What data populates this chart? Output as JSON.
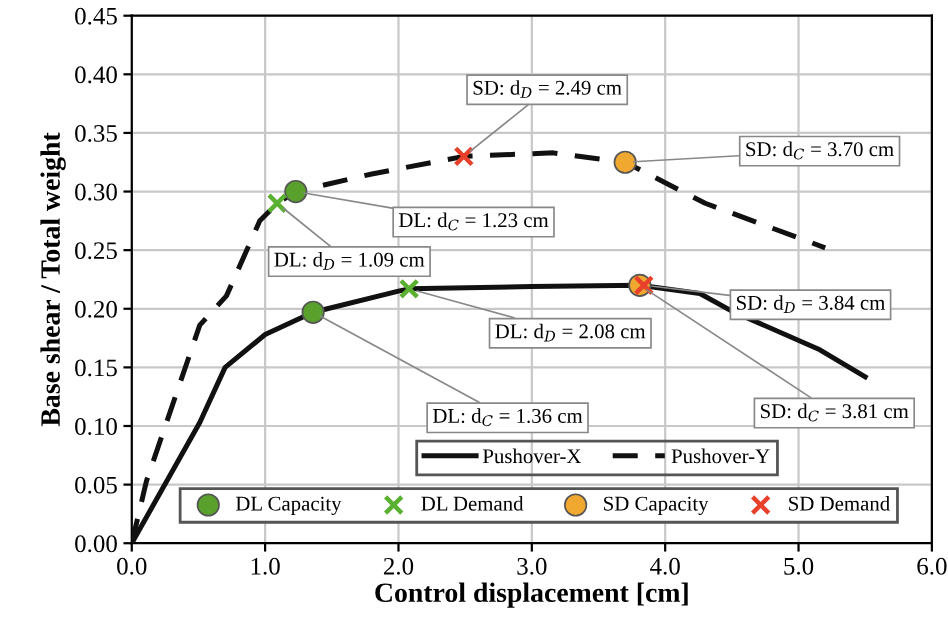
{
  "chart_data": {
    "type": "line",
    "xlabel": "Control displacement [cm]",
    "ylabel": "Base shear / Total weight",
    "xlim": [
      0,
      6
    ],
    "ylim": [
      0,
      0.45
    ],
    "xticks": [
      {
        "value": 0,
        "label": "0.0"
      },
      {
        "value": 1,
        "label": "1.0"
      },
      {
        "value": 2,
        "label": "2.0"
      },
      {
        "value": 3,
        "label": "3.0"
      },
      {
        "value": 4,
        "label": "4.0"
      },
      {
        "value": 5,
        "label": "5.0"
      },
      {
        "value": 6,
        "label": "6.0"
      }
    ],
    "yticks": [
      {
        "value": 0,
        "label": "0.00"
      },
      {
        "value": 0.05,
        "label": "0.05"
      },
      {
        "value": 0.1,
        "label": "0.10"
      },
      {
        "value": 0.15,
        "label": "0.15"
      },
      {
        "value": 0.2,
        "label": "0.20"
      },
      {
        "value": 0.25,
        "label": "0.25"
      },
      {
        "value": 0.3,
        "label": "0.30"
      },
      {
        "value": 0.35,
        "label": "0.35"
      },
      {
        "value": 0.4,
        "label": "0.40"
      },
      {
        "value": 0.45,
        "label": "0.45"
      }
    ],
    "grid": true,
    "legend": "bottom right",
    "series": [
      {
        "name": "Pushover-X",
        "line_style": "solid",
        "color": "#111111",
        "x": [
          0,
          0.51,
          0.7,
          1.0,
          1.36,
          2.0,
          2.08,
          3.0,
          3.81,
          4.26,
          4.5,
          5.16,
          5.5
        ],
        "values": [
          0,
          0.103,
          0.15,
          0.178,
          0.197,
          0.215,
          0.217,
          0.219,
          0.22,
          0.213,
          0.198,
          0.165,
          0.142
        ]
      },
      {
        "name": "Pushover-Y",
        "line_style": "dashed",
        "color": "#111111",
        "x": [
          0,
          0.11,
          0.51,
          0.71,
          0.96,
          1.09,
          1.23,
          1.8,
          2.49,
          3.16,
          3.7,
          4.3,
          5.2
        ],
        "values": [
          0,
          0.053,
          0.186,
          0.211,
          0.275,
          0.29,
          0.3,
          0.315,
          0.33,
          0.333,
          0.325,
          0.29,
          0.252
        ]
      },
      {
        "name": "DL Capacity",
        "type": "scatter",
        "marker": "circle",
        "color": "#5aa02c",
        "x": [
          1.36,
          1.23
        ],
        "values": [
          0.197,
          0.3
        ]
      },
      {
        "name": "DL Demand",
        "type": "scatter",
        "marker": "cross",
        "color": "#5ab030",
        "x": [
          2.08,
          1.09
        ],
        "values": [
          0.217,
          0.29
        ]
      },
      {
        "name": "SD Capacity",
        "type": "scatter",
        "marker": "circle",
        "color": "#f0a830",
        "x": [
          3.81,
          3.7
        ],
        "values": [
          0.22,
          0.325
        ]
      },
      {
        "name": "SD Demand",
        "type": "scatter",
        "marker": "cross",
        "color": "#e8402a",
        "x": [
          3.84,
          2.49
        ],
        "values": [
          0.22,
          0.33
        ]
      }
    ],
    "annotations": [
      {
        "text": "SD: d$_{D}$ = 2.49 cm",
        "x": 2.49,
        "y": 0.33
      },
      {
        "text": "SD: d$_{C}$ = 3.70 cm",
        "x": 3.7,
        "y": 0.325
      },
      {
        "text": "DL: d$_{C}$ = 1.23 cm",
        "x": 1.23,
        "y": 0.3
      },
      {
        "text": "DL: d$_{D}$ = 1.09 cm",
        "x": 1.09,
        "y": 0.29
      },
      {
        "text": "DL: d$_{D}$ = 2.08 cm",
        "x": 2.08,
        "y": 0.217
      },
      {
        "text": "SD: d$_{D}$ = 3.84 cm",
        "x": 3.84,
        "y": 0.22
      },
      {
        "text": "DL: d$_{C}$ = 1.36 cm",
        "x": 1.36,
        "y": 0.197
      },
      {
        "text": "SD: d$_{C}$ = 3.81 cm",
        "x": 3.81,
        "y": 0.22
      }
    ]
  }
}
